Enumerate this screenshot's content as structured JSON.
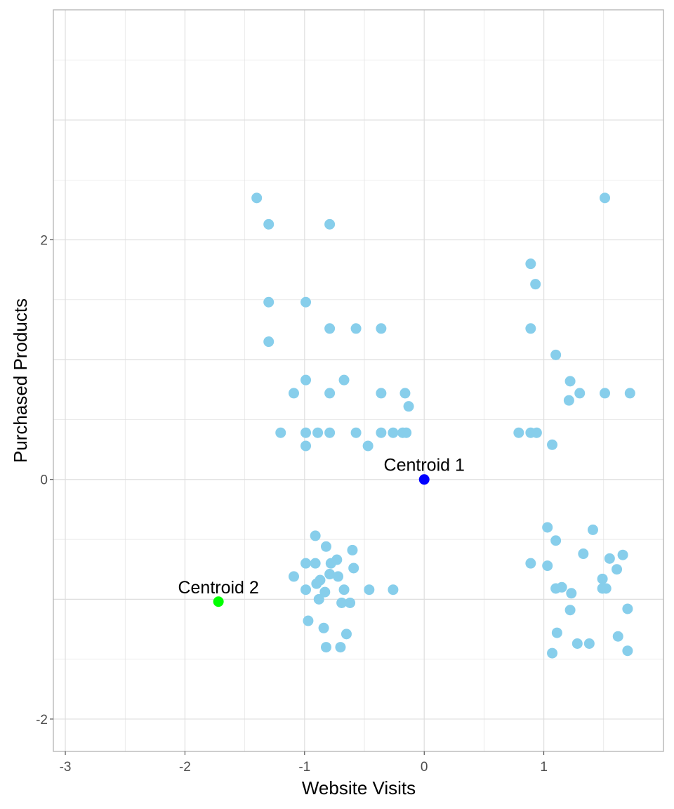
{
  "chart_data": {
    "type": "scatter",
    "title": "",
    "xlabel": "Website Visits",
    "ylabel": "Purchased Products",
    "xlim": [
      -3.1,
      2.0
    ],
    "ylim": [
      -2.27,
      3.92
    ],
    "x_ticks": [
      -3,
      -2,
      -1,
      0,
      1
    ],
    "y_ticks": [
      -2,
      0,
      2
    ],
    "x_tick_labels": [
      "-3",
      "-2",
      "-1",
      "0",
      "1"
    ],
    "y_tick_labels": [
      "-2",
      "0",
      "2"
    ],
    "grid": true,
    "colors": {
      "points": "#87CEEB",
      "centroid1": "#0000FF",
      "centroid2": "#00FF00",
      "grid": "#DEDEDE",
      "border": "#B3B3B3"
    },
    "points": [
      [
        -1.4,
        2.35
      ],
      [
        -1.3,
        2.13
      ],
      [
        -0.79,
        2.13
      ],
      [
        -1.3,
        1.48
      ],
      [
        -0.99,
        1.48
      ],
      [
        -1.3,
        1.15
      ],
      [
        -0.79,
        1.26
      ],
      [
        -0.57,
        1.26
      ],
      [
        -0.36,
        1.26
      ],
      [
        -1.09,
        0.72
      ],
      [
        -0.99,
        0.83
      ],
      [
        -0.79,
        0.72
      ],
      [
        -0.67,
        0.83
      ],
      [
        -0.36,
        0.72
      ],
      [
        -0.16,
        0.72
      ],
      [
        -0.13,
        0.61
      ],
      [
        -1.2,
        0.39
      ],
      [
        -0.99,
        0.39
      ],
      [
        -0.89,
        0.39
      ],
      [
        -0.79,
        0.39
      ],
      [
        -0.57,
        0.39
      ],
      [
        -0.36,
        0.39
      ],
      [
        -0.26,
        0.39
      ],
      [
        -0.18,
        0.39
      ],
      [
        -0.15,
        0.39
      ],
      [
        -0.99,
        0.28
      ],
      [
        -0.47,
        0.28
      ],
      [
        1.51,
        2.35
      ],
      [
        0.89,
        1.8
      ],
      [
        0.93,
        1.63
      ],
      [
        0.89,
        1.26
      ],
      [
        1.1,
        1.04
      ],
      [
        1.22,
        0.82
      ],
      [
        1.21,
        0.66
      ],
      [
        1.3,
        0.72
      ],
      [
        1.51,
        0.72
      ],
      [
        1.72,
        0.72
      ],
      [
        0.79,
        0.39
      ],
      [
        0.89,
        0.39
      ],
      [
        0.94,
        0.39
      ],
      [
        1.07,
        0.29
      ],
      [
        -0.91,
        -0.47
      ],
      [
        -0.82,
        -0.56
      ],
      [
        -0.6,
        -0.59
      ],
      [
        -0.99,
        -0.7
      ],
      [
        -0.91,
        -0.7
      ],
      [
        -0.78,
        -0.7
      ],
      [
        -0.73,
        -0.67
      ],
      [
        -0.59,
        -0.74
      ],
      [
        -1.09,
        -0.81
      ],
      [
        -0.79,
        -0.79
      ],
      [
        -0.72,
        -0.81
      ],
      [
        -0.87,
        -0.84
      ],
      [
        -0.9,
        -0.87
      ],
      [
        -0.99,
        -0.92
      ],
      [
        -0.83,
        -0.94
      ],
      [
        -0.88,
        -1.0
      ],
      [
        -0.67,
        -0.92
      ],
      [
        -0.46,
        -0.92
      ],
      [
        -0.26,
        -0.92
      ],
      [
        -0.69,
        -1.03
      ],
      [
        -0.62,
        -1.03
      ],
      [
        -0.97,
        -1.18
      ],
      [
        -0.84,
        -1.24
      ],
      [
        -0.65,
        -1.29
      ],
      [
        -0.82,
        -1.4
      ],
      [
        -0.7,
        -1.4
      ],
      [
        1.03,
        -0.4
      ],
      [
        1.1,
        -0.51
      ],
      [
        1.41,
        -0.42
      ],
      [
        1.33,
        -0.62
      ],
      [
        0.89,
        -0.7
      ],
      [
        1.03,
        -0.72
      ],
      [
        1.55,
        -0.66
      ],
      [
        1.66,
        -0.63
      ],
      [
        1.61,
        -0.75
      ],
      [
        1.1,
        -0.91
      ],
      [
        1.15,
        -0.9
      ],
      [
        1.23,
        -0.95
      ],
      [
        1.49,
        -0.83
      ],
      [
        1.49,
        -0.91
      ],
      [
        1.52,
        -0.91
      ],
      [
        1.22,
        -1.09
      ],
      [
        1.7,
        -1.08
      ],
      [
        1.11,
        -1.28
      ],
      [
        1.28,
        -1.37
      ],
      [
        1.38,
        -1.37
      ],
      [
        1.62,
        -1.31
      ],
      [
        1.07,
        -1.45
      ],
      [
        1.7,
        -1.43
      ]
    ],
    "centroids": [
      {
        "label": "Centroid 1",
        "x": 0.0,
        "y": 0.0,
        "color": "#0000FF"
      },
      {
        "label": "Centroid 2",
        "x": -1.72,
        "y": -1.02,
        "color": "#00FF00"
      }
    ]
  }
}
